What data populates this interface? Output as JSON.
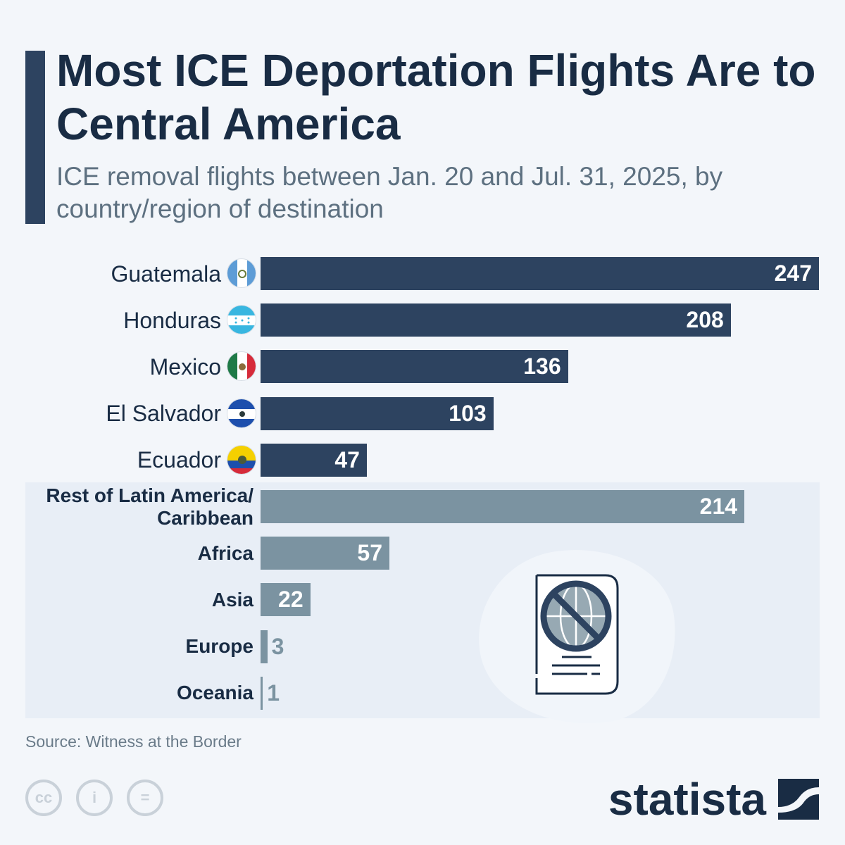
{
  "header": {
    "title": "Most ICE Deportation Flights Are to Central America",
    "subtitle": "ICE removal flights between Jan. 20 and Jul. 31, 2025, by country/region of destination"
  },
  "chart_data": {
    "type": "bar",
    "orientation": "horizontal",
    "categories": [
      "Guatemala",
      "Honduras",
      "Mexico",
      "El Salvador",
      "Ecuador",
      "Rest of Latin America/ Caribbean",
      "Africa",
      "Asia",
      "Europe",
      "Oceania"
    ],
    "values": [
      247,
      208,
      136,
      103,
      47,
      214,
      57,
      22,
      3,
      1
    ],
    "flags": [
      "guatemala-flag",
      "honduras-flag",
      "mexico-flag",
      "el-salvador-flag",
      "ecuador-flag",
      null,
      null,
      null,
      null,
      null
    ],
    "colors": {
      "country": "#2d4360",
      "region": "#7b93a1"
    },
    "xlim": [
      0,
      247
    ],
    "grid": false,
    "legend": "none"
  },
  "footer": {
    "source": "Source: Witness at the Border",
    "brand": "statista",
    "license_icons": [
      "cc-icon",
      "attribution-icon",
      "no-derivatives-icon"
    ]
  }
}
